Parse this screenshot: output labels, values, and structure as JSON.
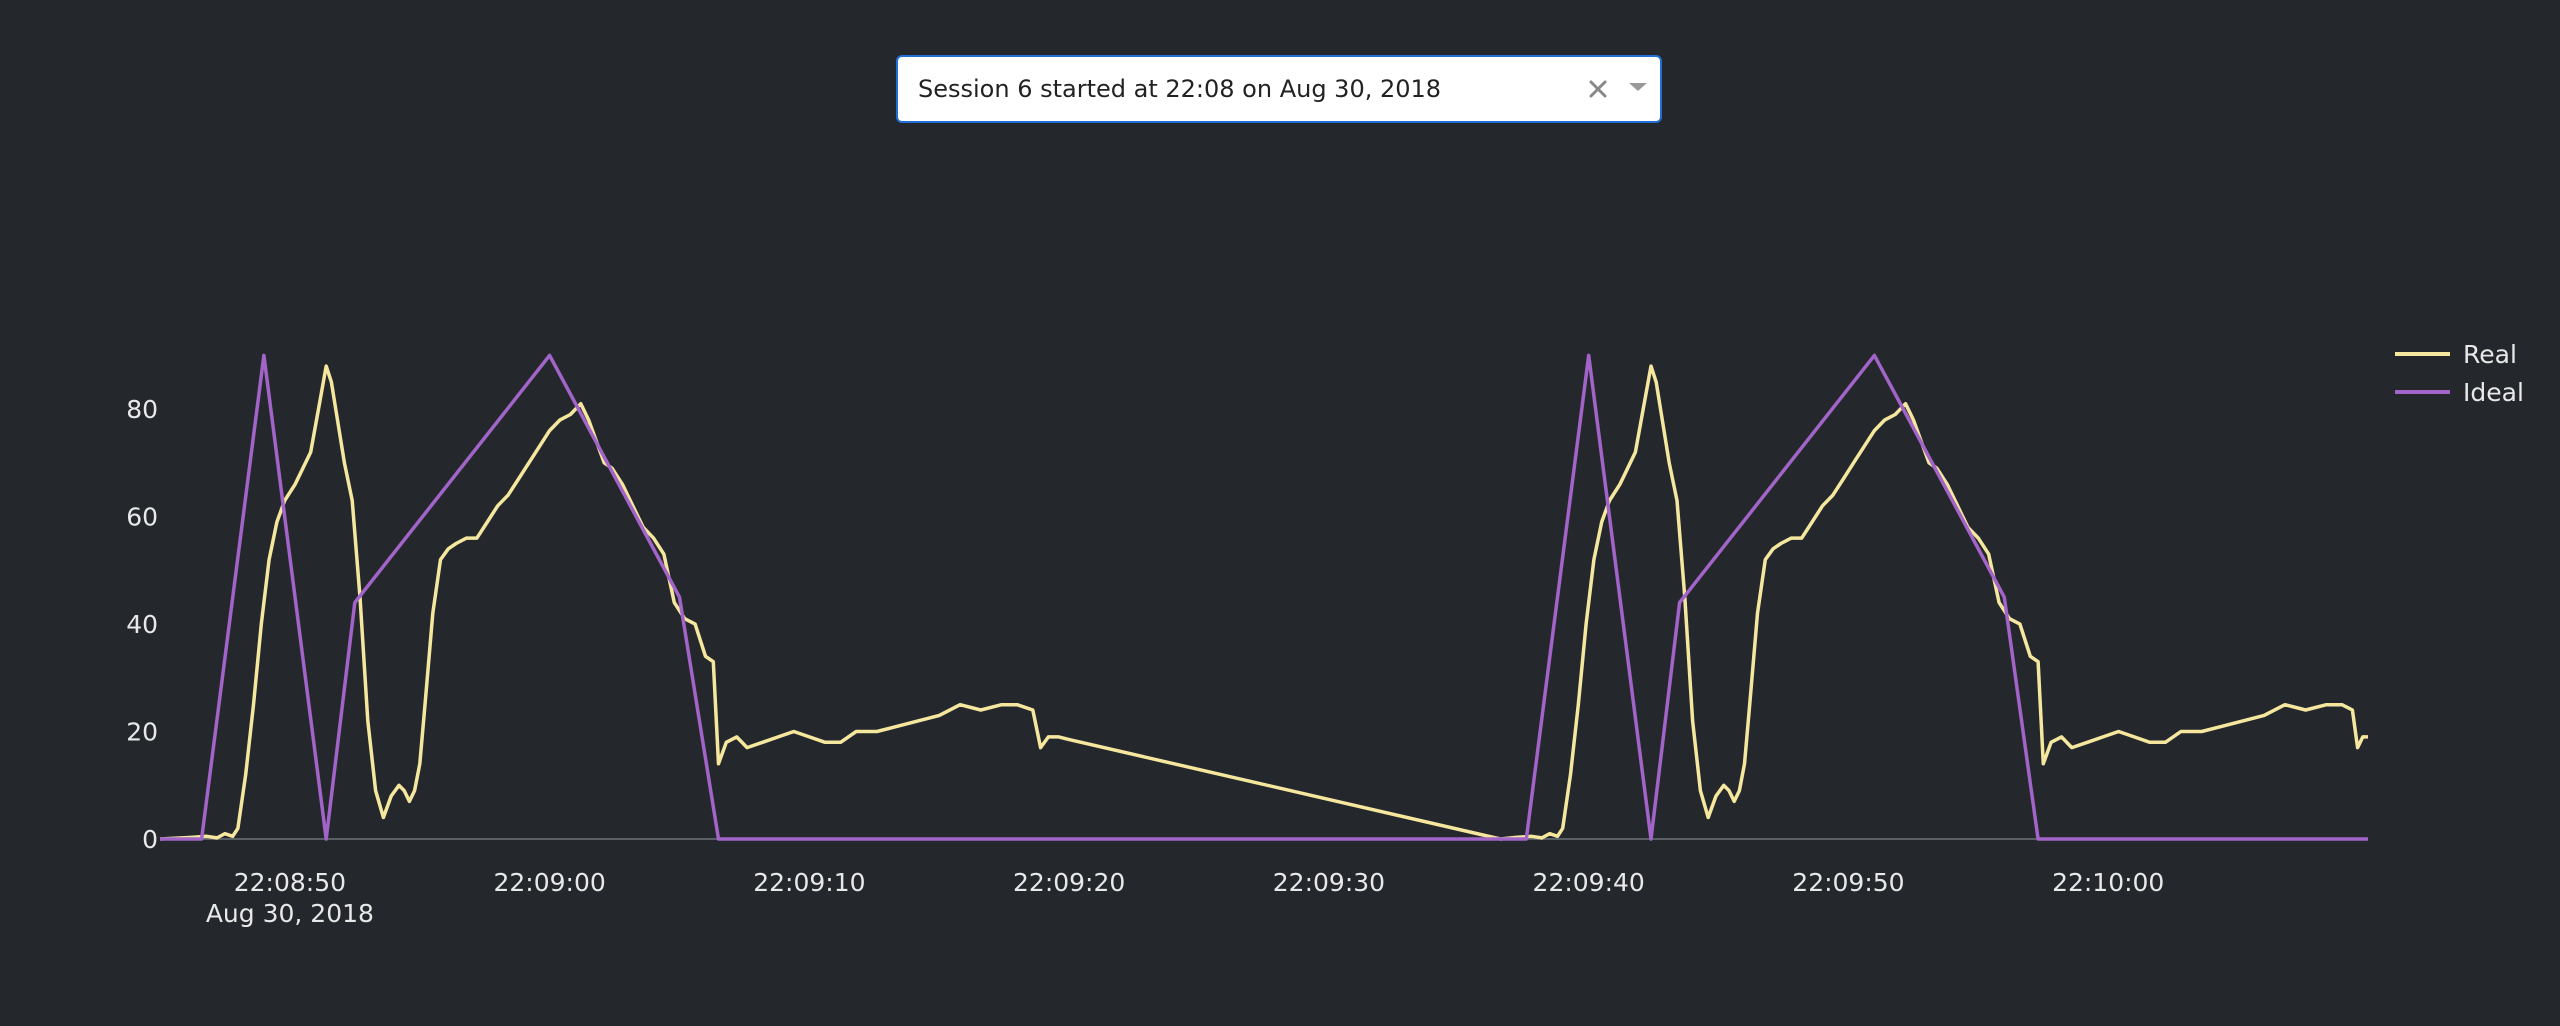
{
  "dropdown": {
    "selected": "Session 6 started at 22:08 on Aug 30, 2018",
    "clear_icon": "close-icon",
    "arrow_icon": "caret-down-icon"
  },
  "colors": {
    "background": "#24282d",
    "real": "#f5e79e",
    "ideal": "#a264c8",
    "axis_text": "#e8e8e8",
    "zero_line": "#5a5f66"
  },
  "chart_data": {
    "type": "line",
    "x_unit": "time (HH:MM:SS, Aug 30, 2018)",
    "xlim": [
      "22:08:45",
      "22:10:09"
    ],
    "ylim": [
      0,
      91
    ],
    "x_ticks": [
      {
        "t": "22:08:50",
        "label": "22:08:50",
        "sublabel": "Aug 30, 2018"
      },
      {
        "t": "22:09:00",
        "label": "22:09:00"
      },
      {
        "t": "22:09:10",
        "label": "22:09:10"
      },
      {
        "t": "22:09:20",
        "label": "22:09:20"
      },
      {
        "t": "22:09:30",
        "label": "22:09:30"
      },
      {
        "t": "22:09:40",
        "label": "22:09:40"
      },
      {
        "t": "22:09:50",
        "label": "22:09:50"
      },
      {
        "t": "22:10:00",
        "label": "22:10:00"
      }
    ],
    "y_ticks": [
      0,
      20,
      40,
      60,
      80
    ],
    "grid": false,
    "legend_position": "top-right",
    "series": [
      {
        "name": "Real",
        "color": "#f5e79e",
        "points": [
          [
            "22:08:45.0",
            0
          ],
          [
            "22:08:46.2",
            0.3
          ],
          [
            "22:08:46.8",
            0.5
          ],
          [
            "22:08:47.2",
            0.2
          ],
          [
            "22:08:47.5",
            1
          ],
          [
            "22:08:47.8",
            0.5
          ],
          [
            "22:08:48.0",
            2
          ],
          [
            "22:08:48.3",
            12
          ],
          [
            "22:08:48.6",
            25
          ],
          [
            "22:08:48.9",
            40
          ],
          [
            "22:08:49.2",
            52
          ],
          [
            "22:08:49.5",
            59
          ],
          [
            "22:08:49.8",
            63
          ],
          [
            "22:08:50.2",
            66
          ],
          [
            "22:08:50.5",
            69
          ],
          [
            "22:08:50.8",
            72
          ],
          [
            "22:08:51.1",
            80
          ],
          [
            "22:08:51.4",
            88
          ],
          [
            "22:08:51.6",
            85
          ],
          [
            "22:08:51.8",
            79
          ],
          [
            "22:08:52.1",
            70
          ],
          [
            "22:08:52.4",
            63
          ],
          [
            "22:08:52.7",
            45
          ],
          [
            "22:08:53.0",
            22
          ],
          [
            "22:08:53.3",
            9
          ],
          [
            "22:08:53.6",
            4
          ],
          [
            "22:08:53.9",
            8
          ],
          [
            "22:08:54.2",
            10
          ],
          [
            "22:08:54.4",
            9
          ],
          [
            "22:08:54.6",
            7
          ],
          [
            "22:08:54.8",
            9
          ],
          [
            "22:08:55.0",
            14
          ],
          [
            "22:08:55.2",
            25
          ],
          [
            "22:08:55.5",
            42
          ],
          [
            "22:08:55.8",
            52
          ],
          [
            "22:08:56.1",
            54
          ],
          [
            "22:08:56.4",
            55
          ],
          [
            "22:08:56.8",
            56
          ],
          [
            "22:08:57.2",
            56
          ],
          [
            "22:08:57.6",
            59
          ],
          [
            "22:08:58.0",
            62
          ],
          [
            "22:08:58.4",
            64
          ],
          [
            "22:08:58.8",
            67
          ],
          [
            "22:08:59.2",
            70
          ],
          [
            "22:08:59.6",
            73
          ],
          [
            "22:09:00.0",
            76
          ],
          [
            "22:09:00.4",
            78
          ],
          [
            "22:09:00.8",
            79
          ],
          [
            "22:09:01.2",
            81
          ],
          [
            "22:09:01.5",
            78
          ],
          [
            "22:09:01.8",
            74
          ],
          [
            "22:09:02.1",
            70
          ],
          [
            "22:09:02.4",
            69
          ],
          [
            "22:09:02.8",
            66
          ],
          [
            "22:09:03.2",
            62
          ],
          [
            "22:09:03.6",
            58
          ],
          [
            "22:09:04.0",
            56
          ],
          [
            "22:09:04.4",
            53
          ],
          [
            "22:09:04.8",
            44
          ],
          [
            "22:09:05.2",
            41
          ],
          [
            "22:09:05.6",
            40
          ],
          [
            "22:09:06.0",
            34
          ],
          [
            "22:09:06.3",
            33
          ],
          [
            "22:09:06.5",
            14
          ],
          [
            "22:09:06.8",
            18
          ],
          [
            "22:09:07.2",
            19
          ],
          [
            "22:09:07.6",
            17
          ],
          [
            "22:09:08.2",
            18
          ],
          [
            "22:09:08.8",
            19
          ],
          [
            "22:09:09.4",
            20
          ],
          [
            "22:09:10.0",
            19
          ],
          [
            "22:09:10.6",
            18
          ],
          [
            "22:09:11.2",
            18
          ],
          [
            "22:09:11.8",
            20
          ],
          [
            "22:09:12.6",
            20
          ],
          [
            "22:09:13.4",
            21
          ],
          [
            "22:09:14.2",
            22
          ],
          [
            "22:09:15.0",
            23
          ],
          [
            "22:09:15.8",
            25
          ],
          [
            "22:09:16.6",
            24
          ],
          [
            "22:09:17.4",
            25
          ],
          [
            "22:09:18.0",
            25
          ],
          [
            "22:09:18.6",
            24
          ],
          [
            "22:09:18.9",
            17
          ],
          [
            "22:09:19.2",
            19
          ],
          [
            "22:09:19.6",
            19
          ],
          [
            "22:09:20.0",
            18.5
          ],
          [
            "22:09:36.6",
            0
          ],
          [
            "22:09:37.2",
            0.3
          ],
          [
            "22:09:37.8",
            0.5
          ],
          [
            "22:09:38.2",
            0.2
          ],
          [
            "22:09:38.5",
            1
          ],
          [
            "22:09:38.8",
            0.5
          ],
          [
            "22:09:39.0",
            2
          ],
          [
            "22:09:39.3",
            12
          ],
          [
            "22:09:39.6",
            25
          ],
          [
            "22:09:39.9",
            40
          ],
          [
            "22:09:40.2",
            52
          ],
          [
            "22:09:40.5",
            59
          ],
          [
            "22:09:40.8",
            63
          ],
          [
            "22:09:41.2",
            66
          ],
          [
            "22:09:41.5",
            69
          ],
          [
            "22:09:41.8",
            72
          ],
          [
            "22:09:42.1",
            80
          ],
          [
            "22:09:42.4",
            88
          ],
          [
            "22:09:42.6",
            85
          ],
          [
            "22:09:42.8",
            79
          ],
          [
            "22:09:43.1",
            70
          ],
          [
            "22:09:43.4",
            63
          ],
          [
            "22:09:43.7",
            45
          ],
          [
            "22:09:44.0",
            22
          ],
          [
            "22:09:44.3",
            9
          ],
          [
            "22:09:44.6",
            4
          ],
          [
            "22:09:44.9",
            8
          ],
          [
            "22:09:45.2",
            10
          ],
          [
            "22:09:45.4",
            9
          ],
          [
            "22:09:45.6",
            7
          ],
          [
            "22:09:45.8",
            9
          ],
          [
            "22:09:46.0",
            14
          ],
          [
            "22:09:46.2",
            25
          ],
          [
            "22:09:46.5",
            42
          ],
          [
            "22:09:46.8",
            52
          ],
          [
            "22:09:47.1",
            54
          ],
          [
            "22:09:47.4",
            55
          ],
          [
            "22:09:47.8",
            56
          ],
          [
            "22:09:48.2",
            56
          ],
          [
            "22:09:48.6",
            59
          ],
          [
            "22:09:49.0",
            62
          ],
          [
            "22:09:49.4",
            64
          ],
          [
            "22:09:49.8",
            67
          ],
          [
            "22:09:50.2",
            70
          ],
          [
            "22:09:50.6",
            73
          ],
          [
            "22:09:51.0",
            76
          ],
          [
            "22:09:51.4",
            78
          ],
          [
            "22:09:51.8",
            79
          ],
          [
            "22:09:52.2",
            81
          ],
          [
            "22:09:52.5",
            78
          ],
          [
            "22:09:52.8",
            74
          ],
          [
            "22:09:53.1",
            70
          ],
          [
            "22:09:53.4",
            69
          ],
          [
            "22:09:53.8",
            66
          ],
          [
            "22:09:54.2",
            62
          ],
          [
            "22:09:54.6",
            58
          ],
          [
            "22:09:55.0",
            56
          ],
          [
            "22:09:55.4",
            53
          ],
          [
            "22:09:55.8",
            44
          ],
          [
            "22:09:56.2",
            41
          ],
          [
            "22:09:56.6",
            40
          ],
          [
            "22:09:57.0",
            34
          ],
          [
            "22:09:57.3",
            33
          ],
          [
            "22:09:57.5",
            14
          ],
          [
            "22:09:57.8",
            18
          ],
          [
            "22:09:58.2",
            19
          ],
          [
            "22:09:58.6",
            17
          ],
          [
            "22:09:59.2",
            18
          ],
          [
            "22:09:59.8",
            19
          ],
          [
            "22:10:00.4",
            20
          ],
          [
            "22:10:01.0",
            19
          ],
          [
            "22:10:01.6",
            18
          ],
          [
            "22:10:02.2",
            18
          ],
          [
            "22:10:02.8",
            20
          ],
          [
            "22:10:03.6",
            20
          ],
          [
            "22:10:04.4",
            21
          ],
          [
            "22:10:05.2",
            22
          ],
          [
            "22:10:06.0",
            23
          ],
          [
            "22:10:06.8",
            25
          ],
          [
            "22:10:07.6",
            24
          ],
          [
            "22:10:08.4",
            25
          ],
          [
            "22:10:09.0",
            25
          ],
          [
            "22:10:09.4",
            24
          ],
          [
            "22:10:09.6",
            17
          ],
          [
            "22:10:09.8",
            19
          ],
          [
            "22:10:10.0",
            19
          ]
        ]
      },
      {
        "name": "Ideal",
        "color": "#a264c8",
        "points": [
          [
            "22:08:45.0",
            0
          ],
          [
            "22:08:46.6",
            0
          ],
          [
            "22:08:49.0",
            90
          ],
          [
            "22:08:51.4",
            0
          ],
          [
            "22:08:52.5",
            44
          ],
          [
            "22:09:00.0",
            90
          ],
          [
            "22:09:05.0",
            45
          ],
          [
            "22:09:06.5",
            0
          ],
          [
            "22:09:37.6",
            0
          ],
          [
            "22:09:40.0",
            90
          ],
          [
            "22:09:42.4",
            0
          ],
          [
            "22:09:43.5",
            44
          ],
          [
            "22:09:51.0",
            90
          ],
          [
            "22:09:56.0",
            45
          ],
          [
            "22:09:57.3",
            0
          ],
          [
            "22:10:10.0",
            0
          ]
        ]
      }
    ]
  }
}
